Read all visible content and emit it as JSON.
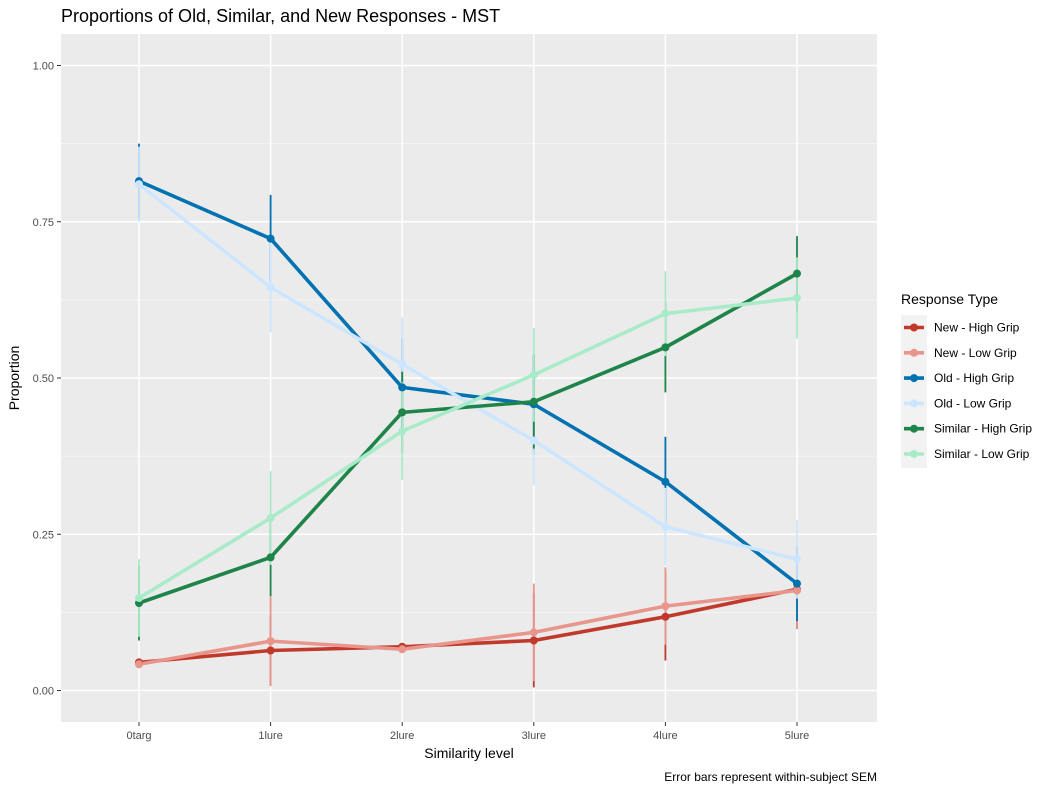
{
  "chart_data": {
    "type": "line",
    "title": "Proportions of Old, Similar, and New Responses - MST",
    "xlabel": "Similarity level",
    "ylabel": "Proportion",
    "caption": "Error bars represent within-subject SEM",
    "categories": [
      "0targ",
      "1lure",
      "2lure",
      "3lure",
      "4lure",
      "5lure"
    ],
    "ylim": [
      -0.05,
      1.05
    ],
    "yticks": [
      0,
      0.25,
      0.5,
      0.75,
      1
    ],
    "ytick_labels": [
      "0.00",
      "0.25",
      "0.50",
      "0.75",
      "1.00"
    ],
    "grid": true,
    "legend": {
      "title": "Response Type",
      "position": "right"
    },
    "series": [
      {
        "name": "New - High Grip",
        "color": "#c0392b",
        "values": [
          0.045,
          0.064,
          0.07,
          0.08,
          0.118,
          0.162
        ],
        "err": [
          0.004,
          0.055,
          0.006,
          0.075,
          0.07,
          0.063
        ]
      },
      {
        "name": "New - Low Grip",
        "color": "#e8958c",
        "values": [
          0.042,
          0.079,
          0.066,
          0.093,
          0.135,
          0.16
        ],
        "err": [
          0.004,
          0.072,
          0.006,
          0.078,
          0.062,
          0.06
        ]
      },
      {
        "name": "Old - High Grip",
        "color": "#0072b2",
        "values": [
          0.815,
          0.723,
          0.485,
          0.458,
          0.334,
          0.171
        ],
        "err": [
          0.06,
          0.07,
          0.078,
          0.08,
          0.072,
          0.06
        ]
      },
      {
        "name": "Old - Low Grip",
        "color": "#cce6ff",
        "values": [
          0.81,
          0.645,
          0.522,
          0.4,
          0.262,
          0.21
        ],
        "err": [
          0.06,
          0.072,
          0.075,
          0.072,
          0.062,
          0.063
        ]
      },
      {
        "name": "Similar - High Grip",
        "color": "#1e8449",
        "values": [
          0.14,
          0.213,
          0.445,
          0.462,
          0.549,
          0.667
        ],
        "err": [
          0.06,
          0.062,
          0.065,
          0.075,
          0.072,
          0.06
        ]
      },
      {
        "name": "Similar - Low Grip",
        "color": "#a9ebc8",
        "values": [
          0.148,
          0.276,
          0.415,
          0.505,
          0.603,
          0.628
        ],
        "err": [
          0.062,
          0.075,
          0.078,
          0.075,
          0.068,
          0.065
        ]
      }
    ]
  }
}
